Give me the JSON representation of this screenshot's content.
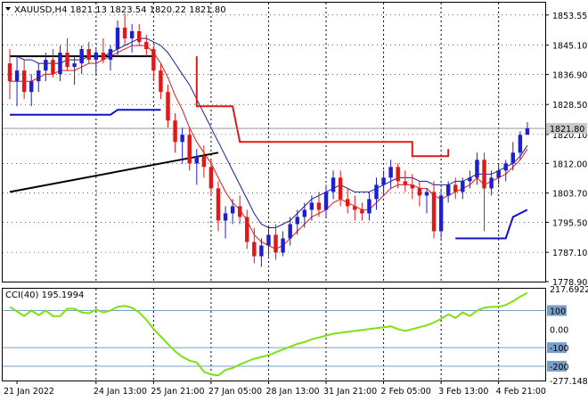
{
  "header": {
    "symbol_line": "XAUUSD,H4  1821.13 1823.54 1820.22 1821.80",
    "indicator_line": "CCI(40) 195.1994"
  },
  "colors": {
    "bull": "#1f1fd0",
    "bear": "#e01818",
    "ma_fast": "#e01818",
    "ma_slow": "#1a1a9e",
    "support": "#e01818",
    "blue_level": "#1111cc",
    "trend": "#000000",
    "cci": "#7fe016",
    "grid": "#000000",
    "level_line": "#7a9fc7",
    "price_tag_bg": "#c8c8c8"
  },
  "chart_data": [
    {
      "type": "candlestick",
      "title": "XAUUSD,H4",
      "ohlc": {
        "open": 1821.13,
        "high": 1823.54,
        "low": 1820.22,
        "close": 1821.8
      },
      "current_price_label": "1821.80",
      "y_ticks": [
        1853.55,
        1845.1,
        1836.9,
        1828.5,
        1820.1,
        1812.0,
        1803.7,
        1795.5,
        1787.1,
        1778.9
      ],
      "y_tick_labels": [
        "1853.55",
        "1845.10",
        "1836.90",
        "1828.50",
        "1820.10",
        "1812.00",
        "1803.70",
        "1795.50",
        "1787.10",
        "1778.90"
      ],
      "ylim": [
        1778.9,
        1857.0
      ],
      "x_labels": [
        "21 Jan 2022",
        "24 Jan 13:00",
        "25 Jan 21:00",
        "27 Jan 05:00",
        "28 Jan 13:00",
        "31 Jan 21:00",
        "2 Feb 05:00",
        "3 Feb 13:00",
        "4 Feb 21:00"
      ],
      "x_label_bar": [
        1,
        12,
        20,
        28,
        36,
        44,
        52,
        60,
        68
      ],
      "candles": [
        [
          1840,
          1844,
          1830,
          1835
        ],
        [
          1835,
          1842,
          1828,
          1838
        ],
        [
          1838,
          1841,
          1830,
          1832
        ],
        [
          1832,
          1837,
          1828,
          1835
        ],
        [
          1835,
          1840,
          1832,
          1838
        ],
        [
          1838,
          1843,
          1835,
          1841
        ],
        [
          1841,
          1844,
          1836,
          1837
        ],
        [
          1837,
          1845,
          1835,
          1843
        ],
        [
          1843,
          1847,
          1838,
          1839
        ],
        [
          1839,
          1842,
          1834,
          1840
        ],
        [
          1840,
          1845,
          1837,
          1844
        ],
        [
          1844,
          1846,
          1840,
          1841
        ],
        [
          1841,
          1844,
          1837,
          1843
        ],
        [
          1843,
          1847,
          1840,
          1841
        ],
        [
          1841,
          1845,
          1838,
          1844
        ],
        [
          1844,
          1852,
          1842,
          1850
        ],
        [
          1850,
          1854,
          1845,
          1847
        ],
        [
          1847,
          1851,
          1843,
          1849
        ],
        [
          1849,
          1851,
          1845,
          1846
        ],
        [
          1846,
          1848,
          1842,
          1844
        ],
        [
          1844,
          1845,
          1835,
          1838
        ],
        [
          1838,
          1840,
          1830,
          1832
        ],
        [
          1832,
          1834,
          1822,
          1824
        ],
        [
          1824,
          1826,
          1815,
          1818
        ],
        [
          1818,
          1822,
          1812,
          1820
        ],
        [
          1820,
          1822,
          1810,
          1812
        ],
        [
          1812,
          1816,
          1806,
          1814
        ],
        [
          1814,
          1817,
          1808,
          1811
        ],
        [
          1811,
          1813,
          1803,
          1805
        ],
        [
          1805,
          1807,
          1793,
          1796
        ],
        [
          1796,
          1800,
          1791,
          1798
        ],
        [
          1798,
          1802,
          1795,
          1800
        ],
        [
          1800,
          1803,
          1795,
          1797
        ],
        [
          1797,
          1799,
          1788,
          1790
        ],
        [
          1790,
          1794,
          1784,
          1786
        ],
        [
          1786,
          1791,
          1783,
          1789
        ],
        [
          1789,
          1794,
          1786,
          1792
        ],
        [
          1792,
          1795,
          1785,
          1787
        ],
        [
          1787,
          1793,
          1786,
          1791
        ],
        [
          1791,
          1797,
          1789,
          1795
        ],
        [
          1795,
          1799,
          1792,
          1797
        ],
        [
          1797,
          1801,
          1794,
          1799
        ],
        [
          1799,
          1803,
          1796,
          1801
        ],
        [
          1801,
          1804,
          1797,
          1799
        ],
        [
          1799,
          1806,
          1797,
          1804
        ],
        [
          1804,
          1810,
          1802,
          1808
        ],
        [
          1808,
          1810,
          1800,
          1802
        ],
        [
          1802,
          1805,
          1798,
          1800
        ],
        [
          1800,
          1803,
          1796,
          1799
        ],
        [
          1799,
          1801,
          1796,
          1798
        ],
        [
          1798,
          1804,
          1796,
          1802
        ],
        [
          1802,
          1808,
          1799,
          1806
        ],
        [
          1806,
          1810,
          1803,
          1808
        ],
        [
          1808,
          1813,
          1805,
          1811
        ],
        [
          1811,
          1812,
          1805,
          1807
        ],
        [
          1807,
          1810,
          1804,
          1806
        ],
        [
          1806,
          1809,
          1802,
          1805
        ],
        [
          1805,
          1807,
          1800,
          1803
        ],
        [
          1803,
          1805,
          1798,
          1804
        ],
        [
          1804,
          1807,
          1791,
          1793
        ],
        [
          1793,
          1805,
          1791,
          1803
        ],
        [
          1803,
          1807,
          1801,
          1806
        ],
        [
          1806,
          1808,
          1802,
          1804
        ],
        [
          1804,
          1808,
          1802,
          1807
        ],
        [
          1807,
          1810,
          1805,
          1808
        ],
        [
          1808,
          1815,
          1806,
          1813
        ],
        [
          1813,
          1815,
          1793,
          1805
        ],
        [
          1805,
          1810,
          1803,
          1808
        ],
        [
          1808,
          1812,
          1806,
          1810
        ],
        [
          1810,
          1813,
          1807,
          1812
        ],
        [
          1812,
          1818,
          1810,
          1815
        ],
        [
          1815,
          1821,
          1813,
          1820
        ],
        [
          1820,
          1823.54,
          1820.22,
          1821.8
        ]
      ],
      "ma_fast": [
        1835,
        1835,
        1835,
        1835,
        1836,
        1837,
        1837,
        1838,
        1838,
        1838,
        1839,
        1840,
        1840,
        1841,
        1842,
        1843,
        1844,
        1845,
        1845,
        1845,
        1843,
        1840,
        1836,
        1831,
        1827,
        1822,
        1818,
        1815,
        1812,
        1808,
        1804,
        1801,
        1799,
        1796,
        1792,
        1790,
        1789,
        1788,
        1789,
        1791,
        1793,
        1795,
        1797,
        1798,
        1799,
        1801,
        1802,
        1801,
        1800,
        1799,
        1799,
        1801,
        1803,
        1805,
        1806,
        1806,
        1806,
        1805,
        1805,
        1803,
        1802,
        1803,
        1804,
        1805,
        1806,
        1808,
        1806,
        1807,
        1808,
        1809,
        1811,
        1813,
        1816
      ],
      "ma_slow": [
        1842,
        1842,
        1841,
        1841,
        1840,
        1840,
        1840,
        1840,
        1841,
        1841,
        1841,
        1842,
        1842,
        1842,
        1843,
        1844,
        1845,
        1846,
        1847,
        1847,
        1846,
        1845,
        1843,
        1840,
        1837,
        1834,
        1830,
        1826,
        1822,
        1818,
        1814,
        1810,
        1806,
        1802,
        1798,
        1795,
        1794,
        1794,
        1795,
        1796,
        1798,
        1800,
        1802,
        1803,
        1804,
        1805,
        1806,
        1805,
        1804,
        1804,
        1804,
        1805,
        1806,
        1807,
        1808,
        1808,
        1808,
        1807,
        1807,
        1806,
        1806,
        1806,
        1807,
        1807,
        1808,
        1809,
        1809,
        1809,
        1810,
        1811,
        1812,
        1814,
        1817
      ],
      "trend_line": [
        [
          0,
          1804
        ],
        [
          29,
          1815
        ]
      ],
      "black_level": [
        [
          0,
          1842
        ],
        [
          20,
          1842
        ]
      ],
      "blue_levels": [
        [
          [
            0,
            1825.6
          ],
          [
            14,
            1825.6
          ],
          [
            15,
            1827
          ],
          [
            21,
            1827
          ]
        ],
        [
          [
            62,
            1791
          ],
          [
            69,
            1791
          ],
          [
            70,
            1797
          ],
          [
            72,
            1799
          ]
        ]
      ],
      "red_support": [
        [
          26,
          1842
        ],
        [
          26,
          1828
        ],
        [
          31,
          1828
        ],
        [
          32,
          1818
        ],
        [
          56,
          1818
        ],
        [
          56,
          1814
        ],
        [
          61,
          1814
        ],
        [
          61,
          1816
        ]
      ]
    },
    {
      "type": "line",
      "title": "CCI(40) 195.1994",
      "y_ticks": [
        217.6922,
        100,
        0,
        -100,
        -200,
        -277.1484
      ],
      "y_tick_labels": [
        "217.6922",
        "100",
        "0.00",
        "-100",
        "-200",
        "-277.1484"
      ],
      "levels": [
        100,
        -100,
        -200
      ],
      "ylim": [
        -277.1484,
        217.6922
      ],
      "values": [
        120,
        95,
        70,
        100,
        75,
        100,
        70,
        70,
        110,
        110,
        90,
        85,
        105,
        90,
        100,
        120,
        125,
        115,
        90,
        50,
        0,
        -40,
        -80,
        -120,
        -150,
        -170,
        -180,
        -230,
        -245,
        -250,
        -220,
        -210,
        -190,
        -175,
        -160,
        -150,
        -140,
        -125,
        -110,
        -95,
        -80,
        -70,
        -55,
        -45,
        -35,
        -25,
        -20,
        -15,
        -10,
        -5,
        0,
        5,
        10,
        15,
        0,
        -10,
        0,
        10,
        20,
        35,
        55,
        80,
        60,
        90,
        70,
        100,
        115,
        120,
        120,
        130,
        150,
        175,
        195
      ]
    }
  ]
}
